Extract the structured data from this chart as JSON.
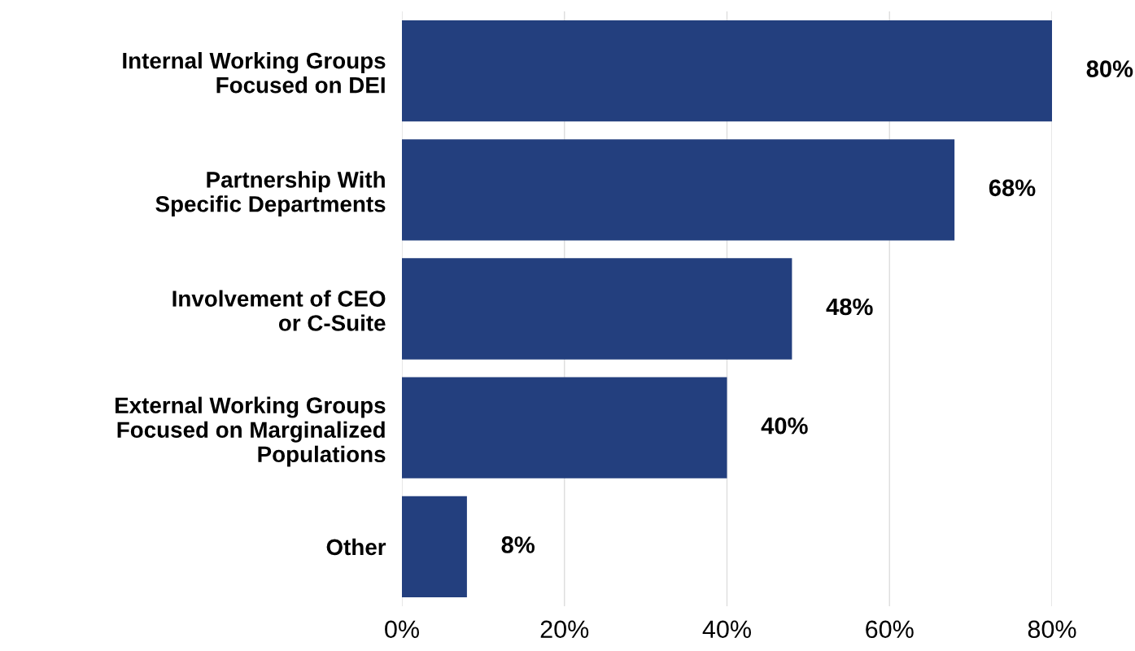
{
  "chart_data": {
    "type": "bar",
    "orientation": "horizontal",
    "categories": [
      "Internal Working Groups\nFocused on DEI",
      "Partnership With\nSpecific Departments",
      "Involvement of CEO\nor C-Suite",
      "External Working Groups\nFocused on Marginalized\nPopulations",
      "Other"
    ],
    "values": [
      80,
      68,
      48,
      40,
      8
    ],
    "value_labels": [
      "80%",
      "68%",
      "48%",
      "40%",
      "8%"
    ],
    "color": "#233f7e",
    "xlim": [
      0,
      80
    ],
    "xticks": [
      {
        "value": 0,
        "label": "0%"
      },
      {
        "value": 20,
        "label": "20%"
      },
      {
        "value": 40,
        "label": "40%"
      },
      {
        "value": 60,
        "label": "60%"
      },
      {
        "value": 80,
        "label": "80%"
      }
    ],
    "grid": "x",
    "legend": false
  }
}
